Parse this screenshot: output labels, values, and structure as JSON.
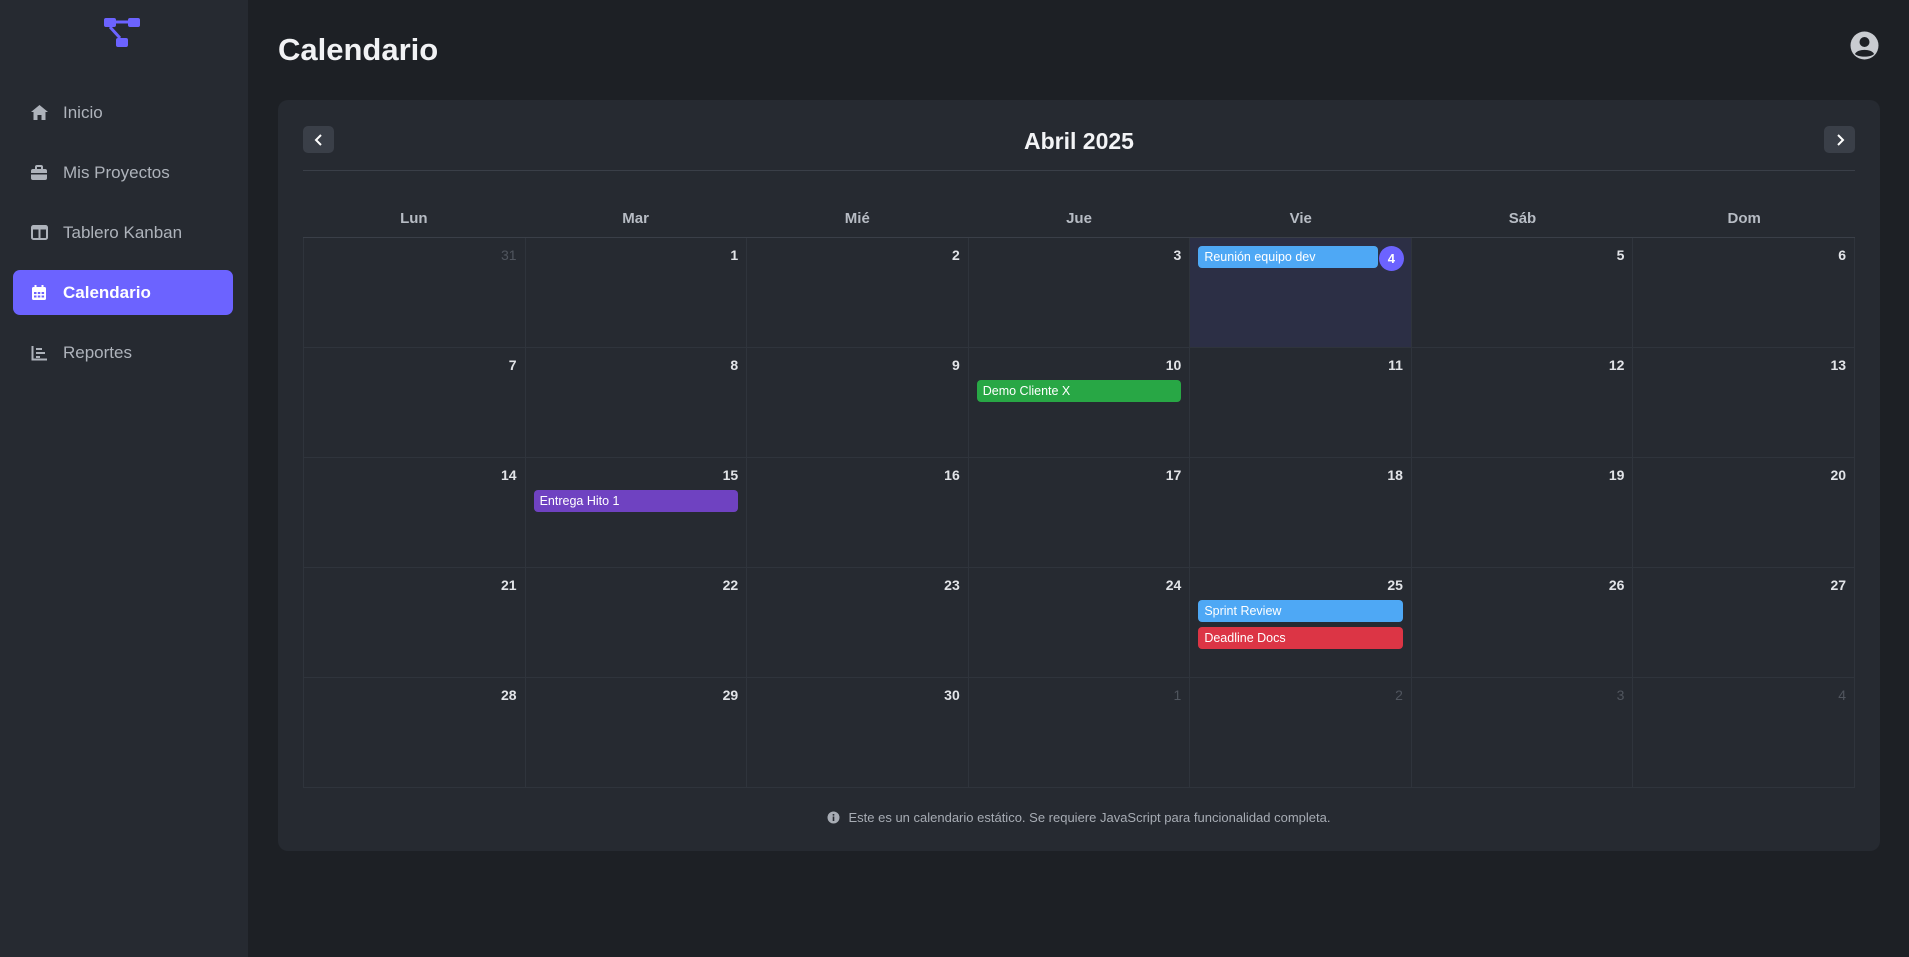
{
  "header": {
    "title": "Calendario"
  },
  "sidebar": {
    "items": [
      {
        "label": "Inicio",
        "icon": "home-icon",
        "active": false
      },
      {
        "label": "Mis Proyectos",
        "icon": "briefcase-icon",
        "active": false
      },
      {
        "label": "Tablero Kanban",
        "icon": "columns-icon",
        "active": false
      },
      {
        "label": "Calendario",
        "icon": "calendar-icon",
        "active": true
      },
      {
        "label": "Reportes",
        "icon": "chart-icon",
        "active": false
      }
    ]
  },
  "calendar": {
    "month_title": "Abril 2025",
    "weekdays": [
      "Lun",
      "Mar",
      "Mié",
      "Jue",
      "Vie",
      "Sáb",
      "Dom"
    ],
    "weeks": [
      [
        "31",
        "1",
        "2",
        "3",
        "4",
        "5",
        "6"
      ],
      [
        "7",
        "8",
        "9",
        "10",
        "11",
        "12",
        "13"
      ],
      [
        "14",
        "15",
        "16",
        "17",
        "18",
        "19",
        "20"
      ],
      [
        "21",
        "22",
        "23",
        "24",
        "25",
        "26",
        "27"
      ],
      [
        "28",
        "29",
        "30",
        "1",
        "2",
        "3",
        "4"
      ]
    ],
    "today": "4",
    "events": {
      "today_event": "Reunión equipo dev",
      "demo": "Demo Cliente X",
      "hito": "Entrega Hito 1",
      "sprint": "Sprint Review",
      "deadline": "Deadline Docs"
    },
    "colors": {
      "accent": "#6c63ff",
      "blue": "#4ea8f5",
      "green": "#28a745",
      "purple": "#6f42c1",
      "red": "#dc3545"
    }
  },
  "footer": {
    "note": "Este es un calendario estático. Se requiere JavaScript para funcionalidad completa."
  }
}
